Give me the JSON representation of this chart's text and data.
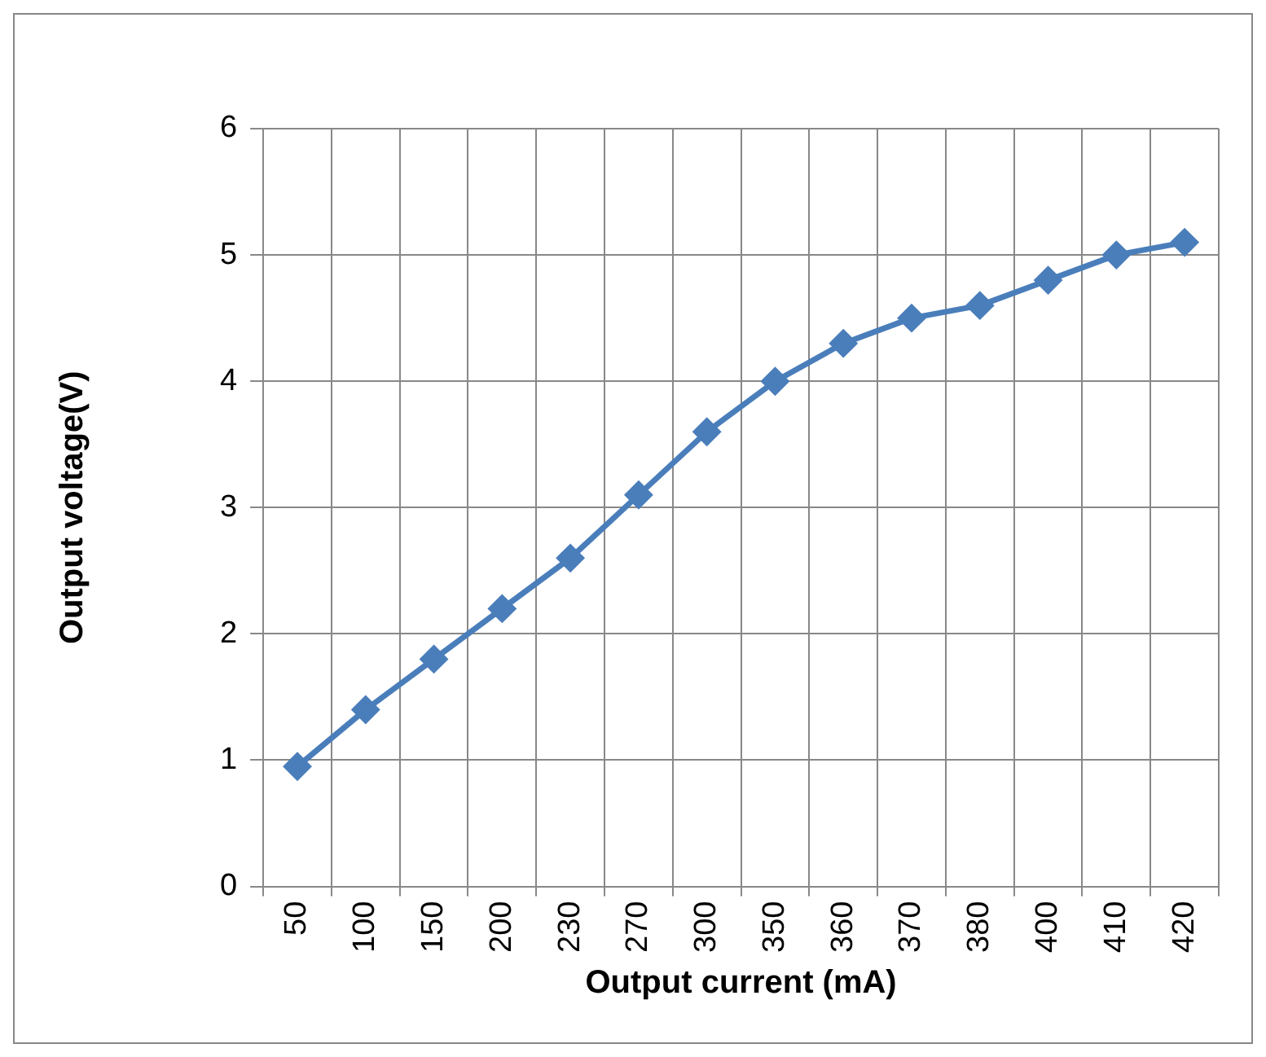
{
  "chart_data": {
    "type": "line",
    "xlabel": "Output current (mA)",
    "ylabel": "Output voltage(V)",
    "categories": [
      "50",
      "100",
      "150",
      "200",
      "230",
      "270",
      "300",
      "350",
      "360",
      "370",
      "380",
      "400",
      "410",
      "420"
    ],
    "series": [
      {
        "color": "#4a7ebb",
        "values": [
          0.95,
          1.4,
          1.8,
          2.2,
          2.6,
          3.1,
          3.6,
          4.0,
          4.3,
          4.5,
          4.6,
          4.8,
          5.0,
          5.1
        ]
      }
    ],
    "ylim": [
      0,
      6
    ],
    "yticks": [
      0,
      1,
      2,
      3,
      4,
      5,
      6
    ],
    "grid": true,
    "legend": false,
    "marker": "diamond",
    "line_style": "solid"
  }
}
